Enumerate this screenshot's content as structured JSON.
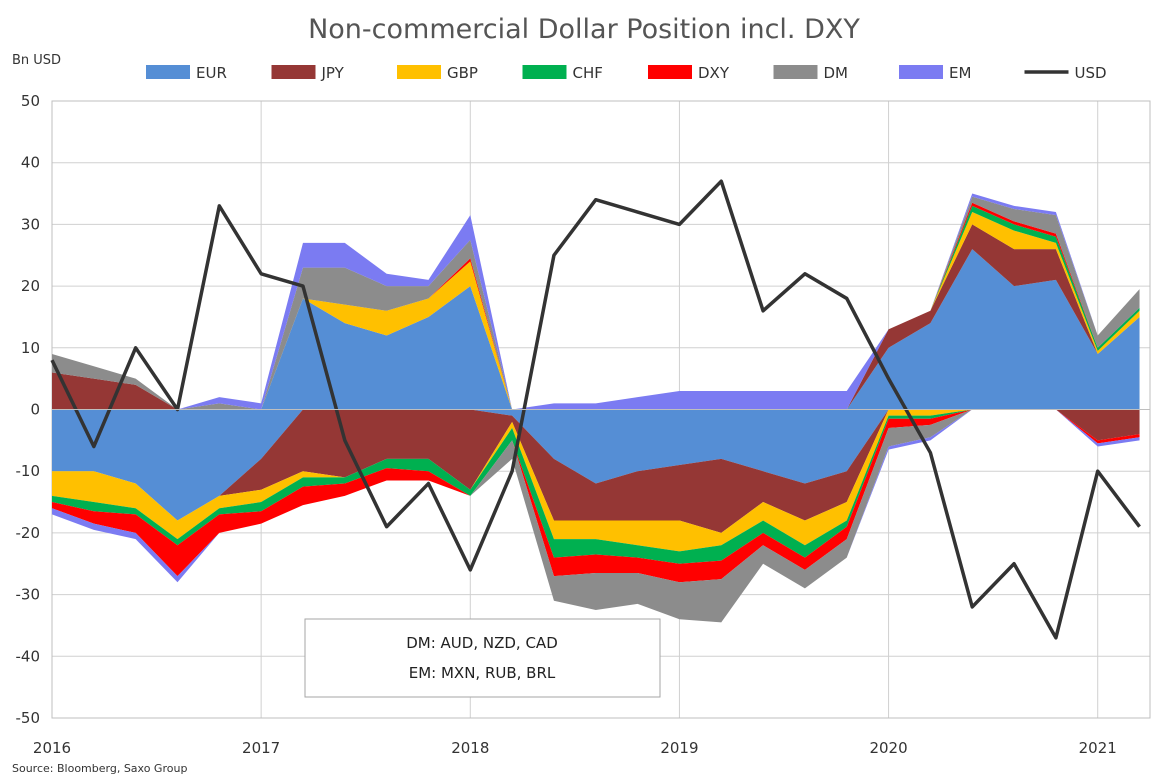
{
  "chart_data": {
    "type": "area",
    "stacked": true,
    "title": "Non-commercial Dollar Position incl. DXY",
    "ylabel": "Bn USD",
    "ylim": [
      -50,
      50
    ],
    "yticks": [
      50,
      40,
      30,
      20,
      10,
      0,
      -10,
      -20,
      -30,
      -40,
      -50
    ],
    "xlim": [
      2016.0,
      2021.25
    ],
    "xticks": [
      {
        "value": 2016,
        "label": "2016"
      },
      {
        "value": 2017,
        "label": "2017"
      },
      {
        "value": 2018,
        "label": "2018"
      },
      {
        "value": 2019,
        "label": "2019"
      },
      {
        "value": 2020,
        "label": "2020"
      },
      {
        "value": 2021,
        "label": "2021"
      }
    ],
    "grid": true,
    "legend_position": "top",
    "x": [
      2016.0,
      2016.2,
      2016.4,
      2016.6,
      2016.8,
      2017.0,
      2017.2,
      2017.4,
      2017.6,
      2017.8,
      2018.0,
      2018.2,
      2018.4,
      2018.6,
      2018.8,
      2019.0,
      2019.2,
      2019.4,
      2019.6,
      2019.8,
      2020.0,
      2020.2,
      2020.4,
      2020.6,
      2020.8,
      2021.0,
      2021.2
    ],
    "series": [
      {
        "name": "EUR",
        "color": "#558ED5",
        "values": [
          -10,
          -10,
          -12,
          -18,
          -14,
          -8,
          18,
          14,
          12,
          15,
          20,
          -1,
          -8,
          -12,
          -10,
          -9,
          -8,
          -10,
          -12,
          -10,
          10,
          14,
          26,
          20,
          21,
          9,
          15
        ]
      },
      {
        "name": "JPY",
        "color": "#953735",
        "values": [
          6,
          5,
          4,
          0,
          0,
          -5,
          -10,
          -11,
          -8,
          -8,
          -13,
          -1,
          -10,
          -6,
          -8,
          -9,
          -12,
          -5,
          -6,
          -5,
          3,
          2,
          4,
          6,
          5,
          -5,
          -4
        ]
      },
      {
        "name": "GBP",
        "color": "#FFC000",
        "values": [
          -4,
          -5,
          -4,
          -3,
          -2,
          -2,
          -1,
          3,
          4,
          3,
          4,
          -1,
          -3,
          -3,
          -4,
          -5,
          -2,
          -3,
          -4,
          -3,
          -1,
          -1,
          2,
          3,
          1,
          0.5,
          1
        ]
      },
      {
        "name": "CHF",
        "color": "#00B050",
        "values": [
          -1,
          -1.5,
          -1,
          -1,
          -1,
          -1.5,
          -1.5,
          -1,
          -1.5,
          -2,
          -1,
          -2,
          -3,
          -2.5,
          -2,
          -2,
          -2.5,
          -2,
          -2,
          -1,
          -0.5,
          -0.5,
          1,
          1,
          1,
          0.5,
          0.5
        ]
      },
      {
        "name": "DXY",
        "color": "#FF0000",
        "values": [
          -1,
          -2,
          -3,
          -5,
          -3,
          -2,
          -3,
          -2,
          -2,
          -1.5,
          0.5,
          0,
          -3,
          -3,
          -2.5,
          -3,
          -3,
          -2,
          -2,
          -2,
          -1.5,
          -1,
          0.5,
          0.5,
          0.5,
          -0.5,
          -0.5
        ]
      },
      {
        "name": "DM",
        "color": "#8C8C8C",
        "values": [
          3,
          2,
          1,
          0,
          1,
          0,
          5,
          6,
          4,
          2,
          3,
          -3,
          -4,
          -6,
          -5,
          -6,
          -7,
          -3,
          -3,
          -3,
          -3,
          -2,
          1,
          2,
          3,
          2,
          3
        ]
      },
      {
        "name": "EM",
        "color": "#7B7BF2",
        "values": [
          -1,
          -1,
          -1,
          -1,
          1,
          1,
          4,
          4,
          2,
          1,
          4,
          0,
          1,
          1,
          2,
          3,
          3,
          3,
          3,
          3,
          -0.5,
          -0.5,
          0.5,
          0.5,
          0.5,
          -0.5,
          -0.5
        ]
      },
      {
        "name": "USD",
        "color": "#333333",
        "type": "line",
        "values": [
          8,
          -6,
          10,
          0,
          33,
          22,
          20,
          -5,
          -19,
          -12,
          -26,
          -10,
          25,
          34,
          32,
          30,
          37,
          16,
          22,
          18,
          5,
          -7,
          -32,
          -25,
          -37,
          -10,
          -19
        ]
      }
    ],
    "annotation": [
      "DM: AUD, NZD, CAD",
      "EM: MXN, RUB, BRL"
    ],
    "source": "Source: Bloomberg, Saxo Group"
  }
}
